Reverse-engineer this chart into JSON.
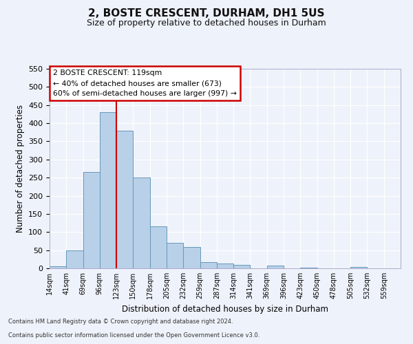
{
  "title": "2, BOSTE CRESCENT, DURHAM, DH1 5US",
  "subtitle": "Size of property relative to detached houses in Durham",
  "xlabel": "Distribution of detached houses by size in Durham",
  "ylabel": "Number of detached properties",
  "bin_labels": [
    "14sqm",
    "41sqm",
    "69sqm",
    "96sqm",
    "123sqm",
    "150sqm",
    "178sqm",
    "205sqm",
    "232sqm",
    "259sqm",
    "287sqm",
    "314sqm",
    "341sqm",
    "369sqm",
    "396sqm",
    "423sqm",
    "450sqm",
    "478sqm",
    "505sqm",
    "532sqm",
    "559sqm"
  ],
  "bar_heights": [
    5,
    50,
    265,
    430,
    380,
    250,
    115,
    70,
    58,
    18,
    14,
    10,
    0,
    8,
    0,
    2,
    0,
    0,
    3,
    0,
    0
  ],
  "bar_color": "#b8d0e8",
  "bar_edge_color": "#6699bb",
  "bar_width": 1.0,
  "vline_x": 4,
  "vline_color": "#cc0000",
  "annotation_title": "2 BOSTE CRESCENT: 119sqm",
  "annotation_line1": "← 40% of detached houses are smaller (673)",
  "annotation_line2": "60% of semi-detached houses are larger (997) →",
  "annotation_box_color": "#ffffff",
  "annotation_box_edge_color": "#cc0000",
  "ylim": [
    0,
    550
  ],
  "yticks": [
    0,
    50,
    100,
    150,
    200,
    250,
    300,
    350,
    400,
    450,
    500,
    550
  ],
  "footer_line1": "Contains HM Land Registry data © Crown copyright and database right 2024.",
  "footer_line2": "Contains public sector information licensed under the Open Government Licence v3.0.",
  "bg_color": "#eef2fa",
  "grid_color": "#ffffff",
  "title_fontsize": 11,
  "subtitle_fontsize": 9
}
